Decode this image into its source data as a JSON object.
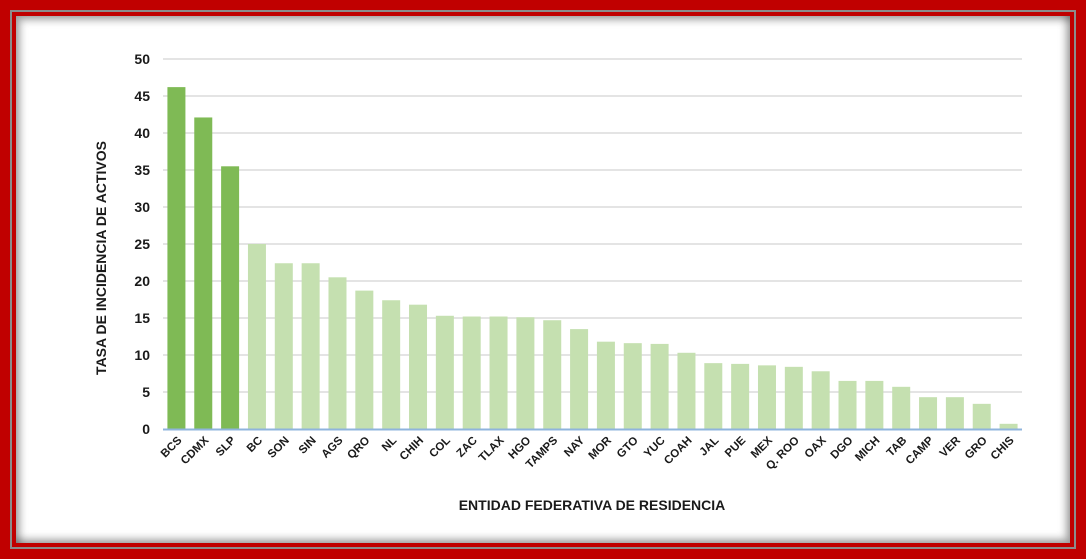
{
  "chart_data": {
    "type": "bar",
    "title": "",
    "xlabel": "ENTIDAD FEDERATIVA DE RESIDENCIA",
    "ylabel": "TASA DE INCIDENCIA DE ACTIVOS",
    "ylim": [
      0,
      50
    ],
    "yticks": [
      0,
      5,
      10,
      15,
      20,
      25,
      30,
      35,
      40,
      45,
      50
    ],
    "grid": true,
    "legend": null,
    "categories": [
      "BCS",
      "CDMX",
      "SLP",
      "BC",
      "SON",
      "SIN",
      "AGS",
      "QRO",
      "NL",
      "CHIH",
      "COL",
      "ZAC",
      "TLAX",
      "HGO",
      "TAMPS",
      "NAY",
      "MOR",
      "GTO",
      "YUC",
      "COAH",
      "JAL",
      "PUE",
      "MEX",
      "Q. ROO",
      "OAX",
      "DGO",
      "MICH",
      "TAB",
      "CAMP",
      "VER",
      "GRO",
      "CHIS"
    ],
    "values": [
      46.2,
      42.1,
      35.5,
      25.0,
      22.4,
      22.4,
      20.5,
      18.7,
      17.4,
      16.8,
      15.3,
      15.2,
      15.2,
      15.1,
      14.7,
      13.5,
      11.8,
      11.6,
      11.5,
      10.3,
      8.9,
      8.8,
      8.6,
      8.4,
      7.8,
      6.5,
      6.5,
      5.7,
      4.3,
      4.3,
      3.4,
      0.7
    ],
    "highlight_top_n": 3,
    "colors": {
      "highlight": "#7fba55",
      "normal": "#c5e0b0",
      "axis": "#8fb4dd",
      "grid": "#dcdcdc"
    }
  },
  "frame": {
    "border_color": "#c00000",
    "inner_line_color": "#8c8c8c"
  }
}
